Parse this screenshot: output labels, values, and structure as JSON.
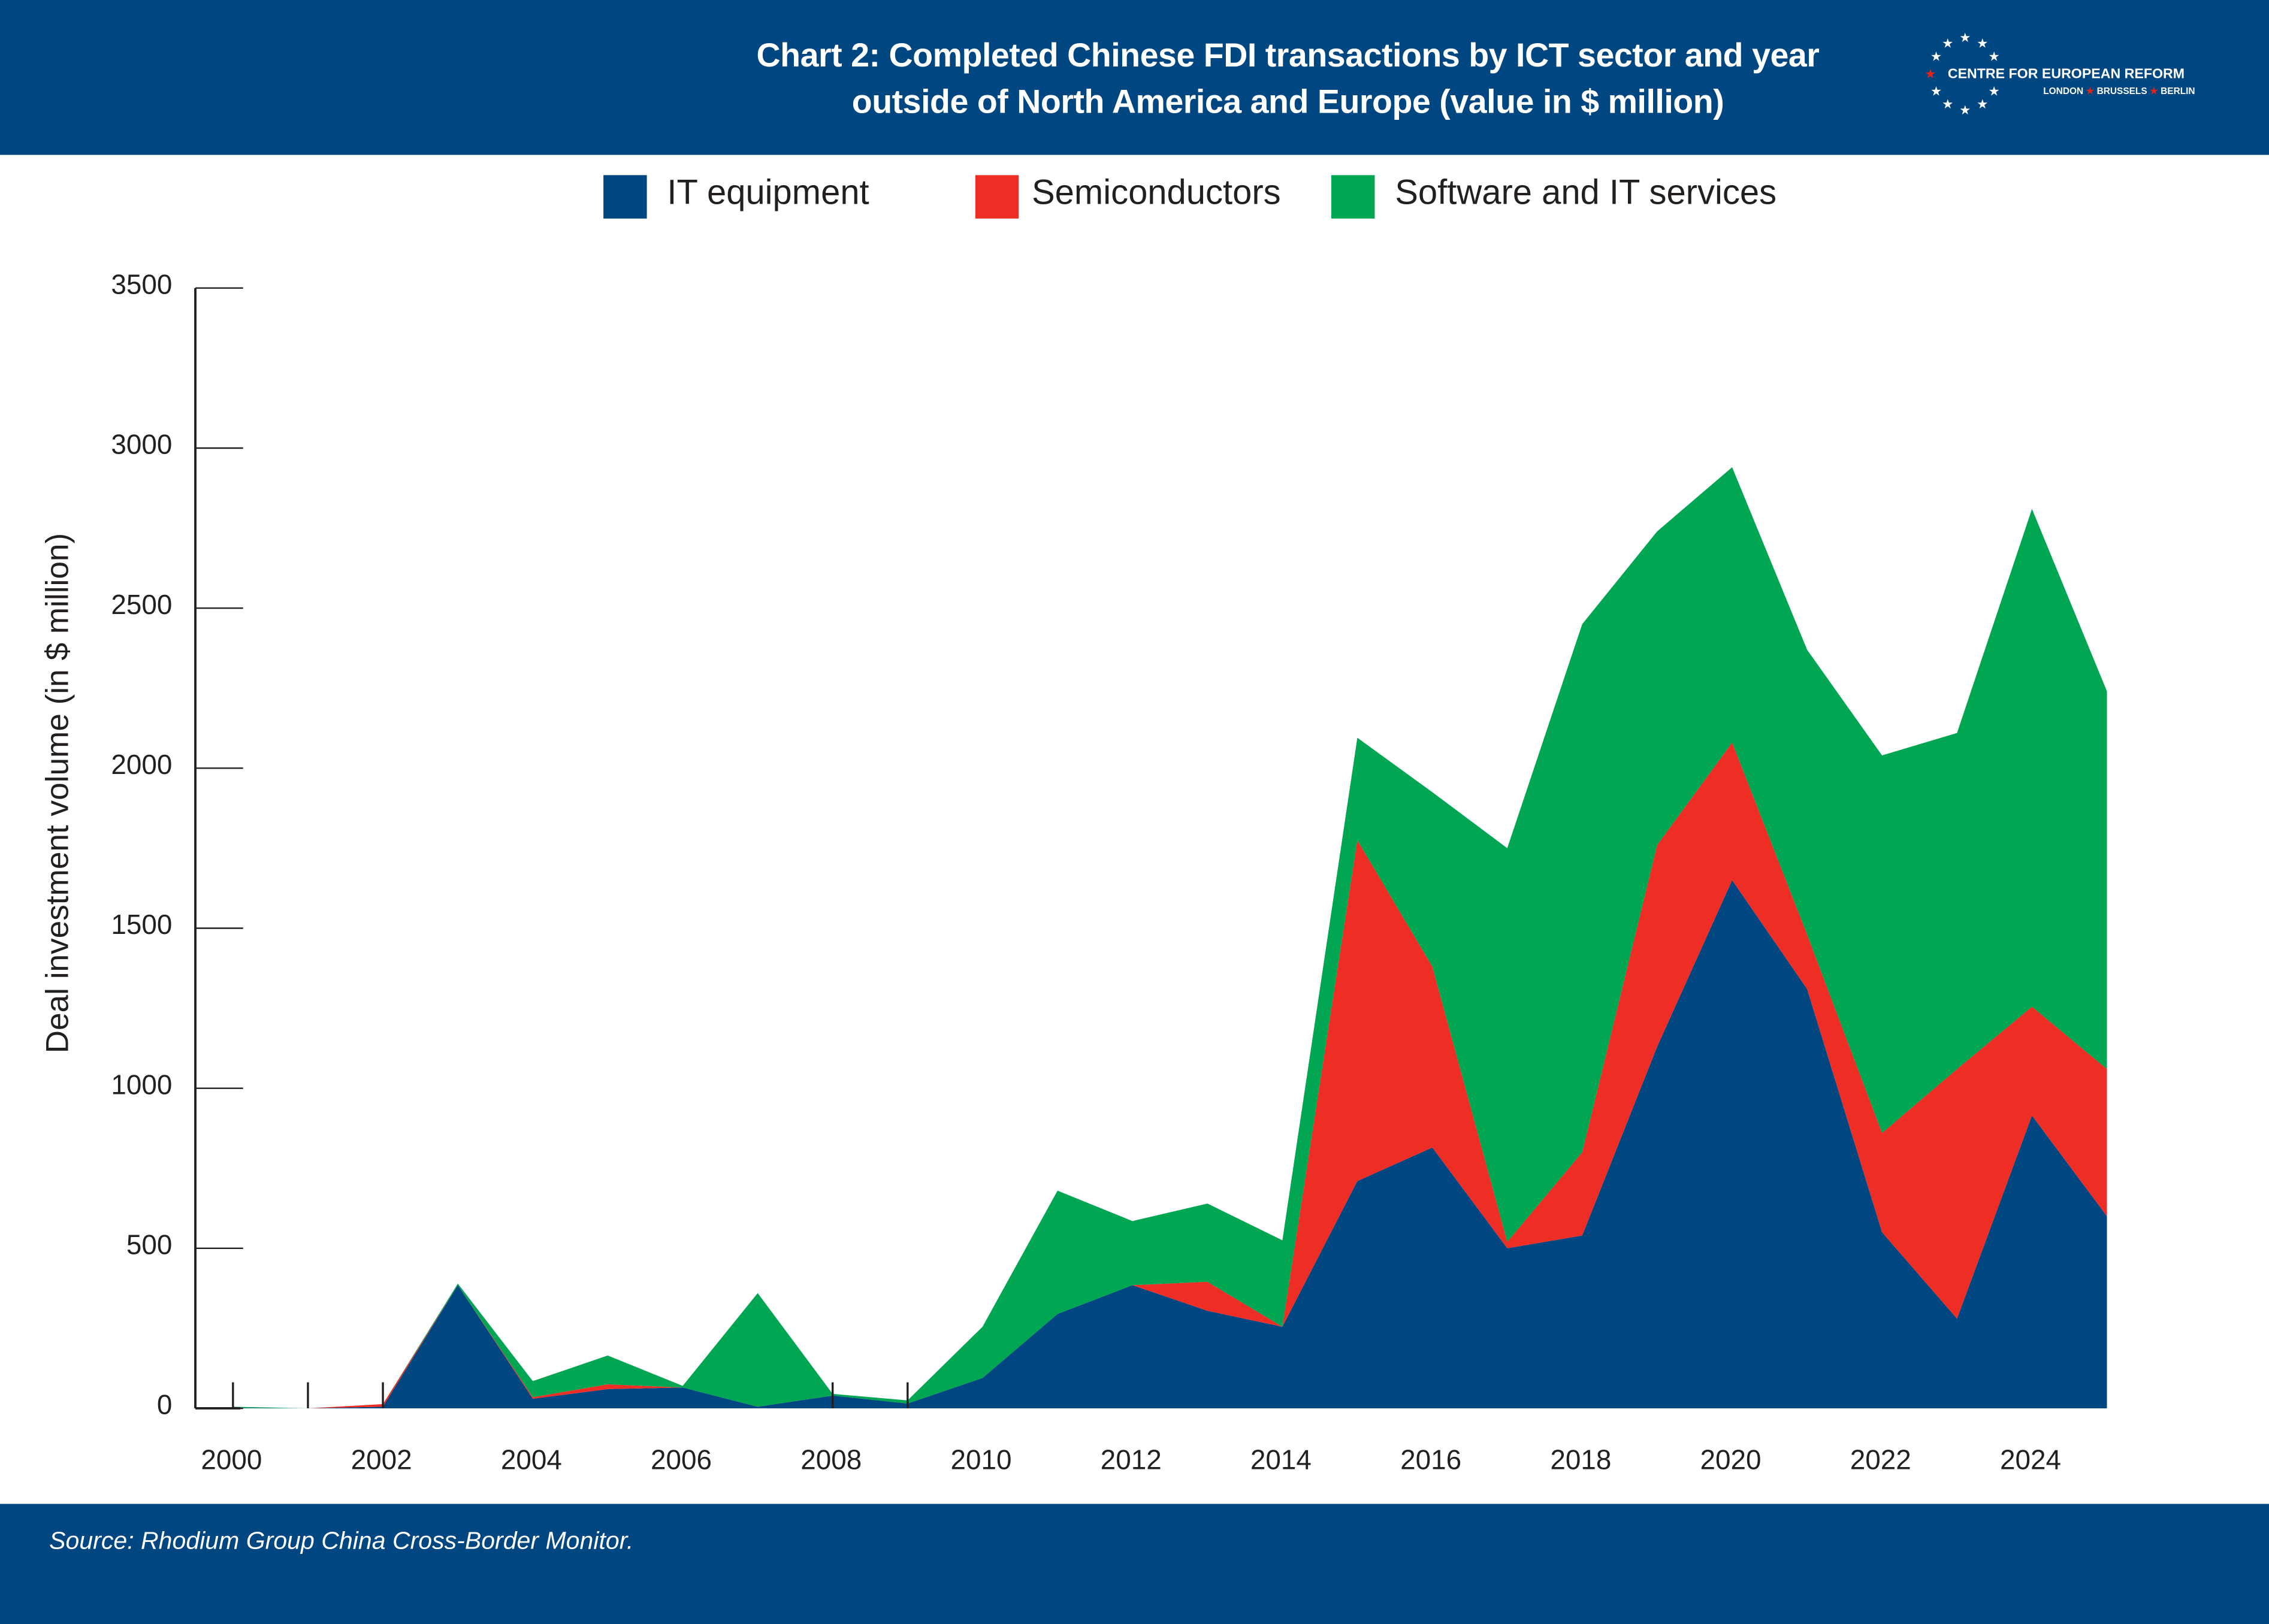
{
  "header": {
    "title_line1": "Chart 2: Completed Chinese FDI transactions by ICT sector and year",
    "title_line2": "outside of North America and Europe (value in $ million)",
    "logo": {
      "name": "CENTRE FOR EUROPEAN REFORM",
      "cities": [
        "LONDON",
        "BRUSSELS",
        "BERLIN"
      ],
      "icon": "eu-star-circle-icon"
    },
    "background_color": "#004680"
  },
  "footer": {
    "source": "Source: Rhodium Group China Cross-Border Monitor."
  },
  "chart_data": {
    "type": "area",
    "stacked": true,
    "title": "Chart 2: Completed Chinese FDI transactions by ICT sector and year outside of North America and Europe (value in $ million)",
    "xlabel": "",
    "ylabel": "Deal investment volume (in $ million)",
    "ylim": [
      0,
      3500
    ],
    "yticks": [
      0,
      500,
      1000,
      1500,
      2000,
      2500,
      3000,
      3500
    ],
    "xtick_labels": [
      "2000",
      "2002",
      "2004",
      "2006",
      "2008",
      "2010",
      "2012",
      "2014",
      "2016",
      "2018",
      "2020",
      "2022",
      "2024"
    ],
    "grid": false,
    "legend_position": "top-center",
    "x": [
      2000,
      2001,
      2002,
      2003,
      2004,
      2005,
      2006,
      2007,
      2008,
      2009,
      2010,
      2011,
      2012,
      2013,
      2014,
      2015,
      2016,
      2017,
      2018,
      2019,
      2020,
      2021,
      2022,
      2023,
      2024,
      2025
    ],
    "series": [
      {
        "name": "IT equipment",
        "color": "#004680",
        "values": [
          2,
          0,
          5,
          385,
          30,
          60,
          65,
          5,
          40,
          15,
          95,
          295,
          385,
          305,
          255,
          710,
          815,
          500,
          540,
          1130,
          1650,
          1310,
          550,
          280,
          915,
          600
        ]
      },
      {
        "name": "Semiconductors",
        "color": "#ee2e24",
        "values": [
          0,
          0,
          8,
          0,
          5,
          15,
          0,
          0,
          0,
          0,
          0,
          0,
          0,
          90,
          0,
          1065,
          565,
          20,
          260,
          630,
          430,
          170,
          310,
          780,
          340,
          460
        ]
      },
      {
        "name": "Software and IT services",
        "color": "#00a651",
        "values": [
          3,
          0,
          0,
          5,
          50,
          90,
          5,
          355,
          5,
          10,
          160,
          385,
          200,
          245,
          270,
          320,
          545,
          1230,
          1650,
          980,
          860,
          890,
          1180,
          1050,
          1555,
          1180
        ]
      }
    ]
  }
}
